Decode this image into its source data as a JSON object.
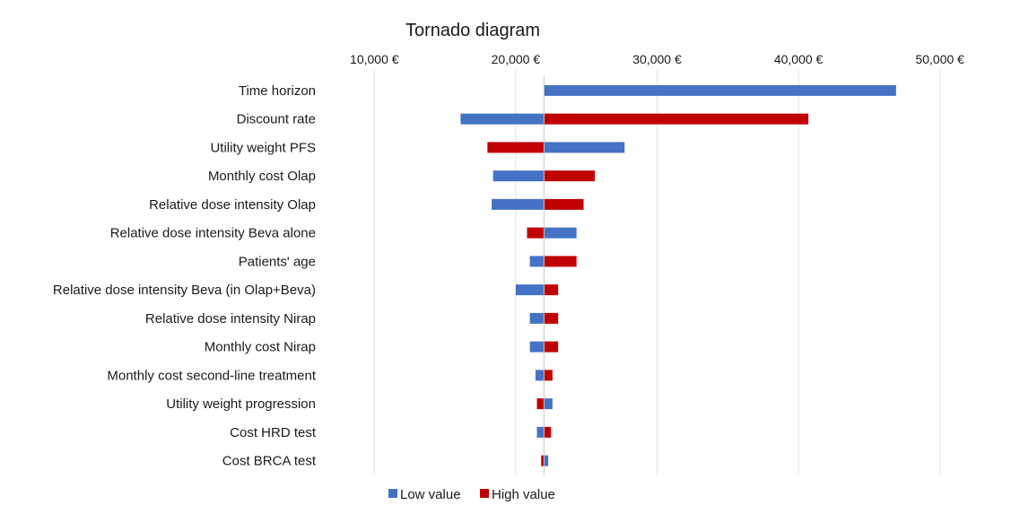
{
  "chart_data": {
    "type": "tornado",
    "title": "Tornado diagram",
    "axis_position": "top",
    "xlim": [
      7000,
      53000
    ],
    "baseline": 22000,
    "ticks": [
      10000,
      20000,
      30000,
      40000,
      50000
    ],
    "tick_labels": [
      "10,000 €",
      "20,000 €",
      "30,000 €",
      "40,000 €",
      "50,000 €"
    ],
    "grid": true,
    "legend_position": "bottom",
    "series": [
      {
        "name": "Low value",
        "color": "#4472c4"
      },
      {
        "name": "High value",
        "color": "#c00000"
      }
    ],
    "categories": [
      "Time horizon",
      "Discount rate",
      "Utility weight  PFS",
      "Monthly cost Olap",
      "Relative dose intensity Olap",
      "Relative dose intensity Beva alone",
      "Patients' age",
      "Relative dose intensity Beva (in Olap+Beva)",
      "Relative dose intensity Nirap",
      "Monthly cost Nirap",
      "Monthly cost second-line treatment",
      "Utility weight progression",
      "Cost HRD test",
      "Cost BRCA test"
    ],
    "low_values": [
      46900,
      16100,
      27700,
      18400,
      18300,
      24300,
      21000,
      20000,
      21000,
      21000,
      21400,
      22600,
      21500,
      22300
    ],
    "high_values": [
      22000,
      40700,
      18000,
      25600,
      24800,
      20800,
      24300,
      23000,
      23000,
      23000,
      22600,
      21500,
      22500,
      21800
    ]
  }
}
